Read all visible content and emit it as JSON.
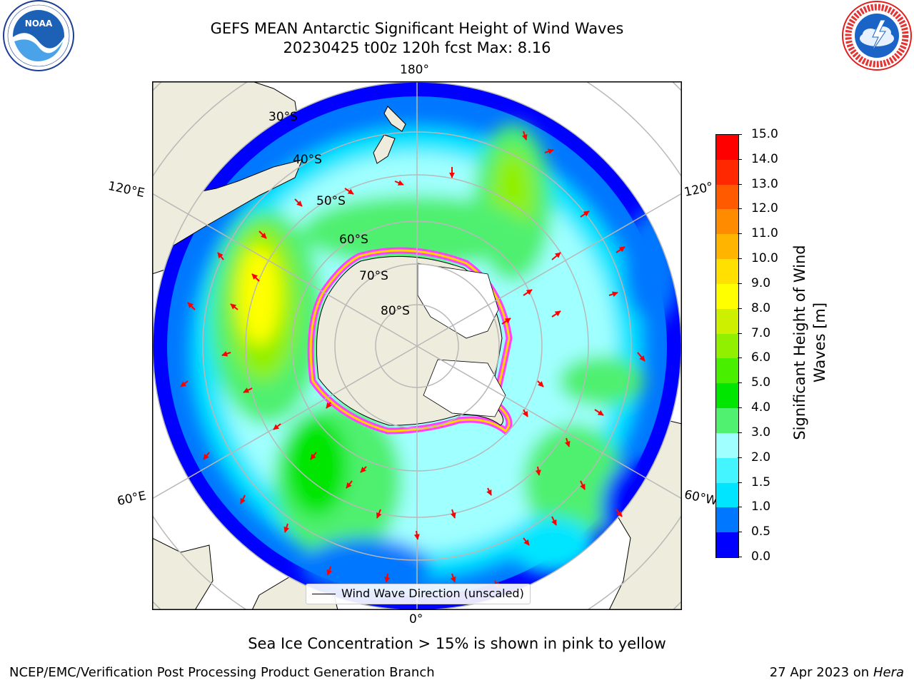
{
  "header": {
    "title_line1": "GEFS MEAN Antarctic Significant Height of Wind Waves",
    "title_line2": "20230425 t00z 120h fcst   Max: 8.16"
  },
  "logos": {
    "left": "NOAA",
    "right": "NATIONAL WEATHER SERVICE"
  },
  "map": {
    "projection": "south-polar-stereographic",
    "lon_labels": [
      "180°",
      "120°E",
      "120°",
      "60°E",
      "60°W",
      "0°"
    ],
    "lat_labels": [
      "30°S",
      "40°S",
      "50°S",
      "60°S",
      "70°S",
      "80°S"
    ],
    "legend": "Wind Wave Direction (unscaled)",
    "colors": {
      "land": "#eeecdc",
      "ice_pink": "#ff40ff",
      "ice_yellow": "#ffd400",
      "arrow": "#ff0000",
      "grid": "#b8b8b8"
    }
  },
  "colorbar": {
    "label_line1": "Significant Height of Wind",
    "label_line2": "Waves [m]",
    "ticks": [
      "15.0",
      "14.0",
      "13.0",
      "12.0",
      "11.0",
      "10.0",
      "9.0",
      "8.0",
      "7.0",
      "6.0",
      "5.0",
      "4.0",
      "3.0",
      "2.0",
      "1.5",
      "1.0",
      "0.5",
      "0.0"
    ],
    "colors": [
      "#0000ff",
      "#0077ff",
      "#00e5ff",
      "#44f4ff",
      "#a0ffff",
      "#50f070",
      "#00e600",
      "#48f000",
      "#90f000",
      "#ccf000",
      "#ffff00",
      "#ffe000",
      "#ffb400",
      "#ff8c00",
      "#ff5a00",
      "#ff2800",
      "#ff0000"
    ]
  },
  "notes": {
    "sea_ice": "Sea Ice Concentration > 15% is shown in pink to yellow"
  },
  "footer": {
    "left": "NCEP/EMC/Verification Post Processing Product Generation Branch",
    "right_prefix": "27 Apr 2023 on ",
    "right_host": "Hera"
  },
  "chart_data": {
    "type": "heatmap",
    "title": "GEFS MEAN Antarctic Significant Height of Wind Waves",
    "subtitle": "20230425 t00z 120h fcst   Max: 8.16",
    "variable": "Significant Height of Wind Waves [m]",
    "max_value": 8.16,
    "color_levels": [
      0.0,
      0.5,
      1.0,
      1.5,
      2.0,
      3.0,
      4.0,
      5.0,
      6.0,
      7.0,
      8.0,
      9.0,
      10.0,
      11.0,
      12.0,
      13.0,
      14.0,
      15.0
    ],
    "vmin": 0.0,
    "vmax": 15.0
  }
}
